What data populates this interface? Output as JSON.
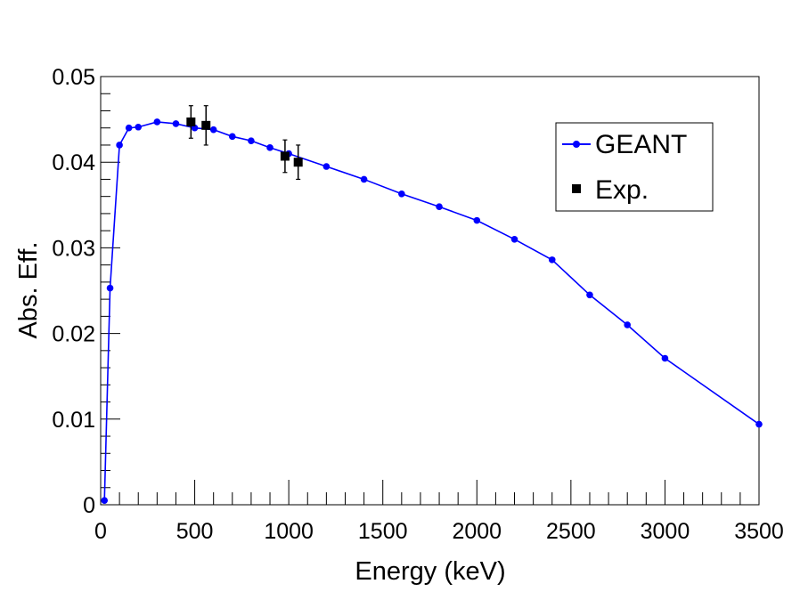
{
  "chart_data": {
    "type": "scatter",
    "xlabel": "Energy (keV)",
    "ylabel": "Abs. Eff.",
    "xlim": [
      0,
      3500
    ],
    "ylim": [
      0,
      0.05
    ],
    "x_ticks": [
      0,
      500,
      1000,
      1500,
      2000,
      2500,
      3000,
      3500
    ],
    "x_tick_labels": [
      "0",
      "500",
      "1000",
      "1500",
      "2000",
      "2500",
      "3000",
      "3500"
    ],
    "y_ticks": [
      0,
      0.01,
      0.02,
      0.03,
      0.04,
      0.05
    ],
    "y_tick_labels": [
      "0",
      "0.01",
      "0.02",
      "0.03",
      "0.04",
      "0.05"
    ],
    "grid": false,
    "legend_position": "top-right",
    "series": [
      {
        "name": "GEANT",
        "color": "#0000ff",
        "marker": "circle",
        "line": true,
        "x": [
          20,
          50,
          100,
          150,
          200,
          300,
          400,
          500,
          600,
          700,
          800,
          900,
          1000,
          1200,
          1400,
          1600,
          1800,
          2000,
          2200,
          2400,
          2600,
          2800,
          3000,
          3500
        ],
        "y": [
          0.0005,
          0.0253,
          0.042,
          0.044,
          0.0441,
          0.0447,
          0.0445,
          0.044,
          0.0438,
          0.043,
          0.0425,
          0.0417,
          0.041,
          0.0395,
          0.038,
          0.0363,
          0.0348,
          0.0332,
          0.031,
          0.0286,
          0.0245,
          0.021,
          0.0171,
          0.0094
        ]
      },
      {
        "name": "Exp.",
        "color": "#000000",
        "marker": "square",
        "line": false,
        "x": [
          480,
          560,
          980,
          1050
        ],
        "y": [
          0.0447,
          0.0443,
          0.0407,
          0.04
        ],
        "yerr": [
          0.0019,
          0.0023,
          0.0019,
          0.002
        ]
      }
    ]
  }
}
